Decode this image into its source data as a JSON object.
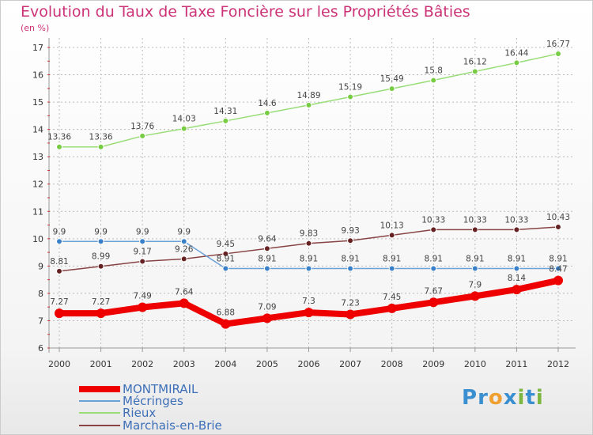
{
  "title": "Evolution du Taux de Taxe Foncière sur les Propriétés Bâties",
  "subtitle": "(en %)",
  "logo": {
    "letters": [
      "P",
      "r",
      "o",
      "x",
      "i",
      "t",
      "i"
    ],
    "colors": [
      "#3a8fd0",
      "#3a8fd0",
      "#f0a030",
      "#3a8fd0",
      "#7ab640",
      "#3a8fd0",
      "#7ab640"
    ]
  },
  "colors": {
    "title": "#cc3377",
    "axis_text": "#333333",
    "grid": "#bbbbbb",
    "legend_text": "#3d6fb8"
  },
  "chart_data": {
    "type": "line",
    "title": "Evolution du Taux de Taxe Foncière sur les Propriétés Bâties",
    "ylabel": "(en %)",
    "xlabel": "",
    "ylim": [
      6,
      17
    ],
    "grid": true,
    "legend": "bottom-left",
    "categories": [
      "2000",
      "2001",
      "2002",
      "2003",
      "2004",
      "2005",
      "2006",
      "2007",
      "2008",
      "2009",
      "2010",
      "2011",
      "2012"
    ],
    "yticks": [
      "6",
      "7",
      "8",
      "9",
      "10",
      "11",
      "12",
      "13",
      "14",
      "15",
      "16",
      "17"
    ],
    "series": [
      {
        "name": "MONTMIRAIL",
        "color": "#ee0000",
        "width": 8,
        "marker": "#ee0000",
        "values": [
          7.27,
          7.27,
          7.49,
          7.64,
          6.88,
          7.09,
          7.3,
          7.23,
          7.45,
          7.67,
          7.9,
          8.14,
          8.47
        ],
        "labels": [
          "7.27",
          "7.27",
          "7.49",
          "7.64",
          "6.88",
          "7.09",
          "7.3",
          "7.23",
          "7.45",
          "7.67",
          "7.9",
          "8.14",
          "8.47"
        ]
      },
      {
        "name": "Mécringes",
        "color": "#6aa0d8",
        "width": 1.5,
        "marker": "#3a80c8",
        "values": [
          9.9,
          9.9,
          9.9,
          9.9,
          8.91,
          8.91,
          8.91,
          8.91,
          8.91,
          8.91,
          8.91,
          8.91,
          8.91
        ],
        "labels": [
          "9.9",
          "9.9",
          "9.9",
          "9.9",
          "8.91",
          "8.91",
          "8.91",
          "8.91",
          "8.91",
          "8.91",
          "8.91",
          "8.91",
          "8.91"
        ]
      },
      {
        "name": "Rieux",
        "color": "#99dd77",
        "width": 1.5,
        "marker": "#77cc44",
        "values": [
          13.36,
          13.36,
          13.76,
          14.03,
          14.31,
          14.6,
          14.89,
          15.19,
          15.49,
          15.8,
          16.12,
          16.44,
          16.77
        ],
        "labels": [
          "13.36",
          "13.36",
          "13.76",
          "14.03",
          "14.31",
          "14.6",
          "14.89",
          "15.19",
          "15.49",
          "15.8",
          "16.12",
          "16.44",
          "16.77"
        ]
      },
      {
        "name": "Marchais-en-Brie",
        "color": "#884444",
        "width": 1.5,
        "marker": "#662222",
        "values": [
          8.81,
          8.99,
          9.17,
          9.26,
          9.45,
          9.64,
          9.83,
          9.93,
          10.13,
          10.33,
          10.33,
          10.33,
          10.43
        ],
        "labels": [
          "8.81",
          "8.99",
          "9.17",
          "9.26",
          "9.45",
          "9.64",
          "9.83",
          "9.93",
          "10.13",
          "10.33",
          "10.33",
          "10.33",
          "10.43"
        ]
      }
    ]
  }
}
